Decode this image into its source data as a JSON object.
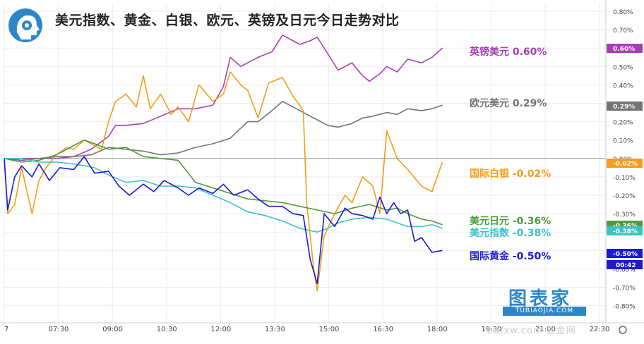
{
  "title": "美元指数、黄金、白银、欧元、英镑及日元今日走势对比",
  "watermark": {
    "main": "图表家",
    "sub": "TUBIAOJIA.COM",
    "secondary": "eafxw.com  汇金网"
  },
  "colors": {
    "gbp": "#a43fb3",
    "eur": "#737373",
    "silver": "#f39c1a",
    "jpy": "#4f9a3c",
    "dxy": "#3cc3c6",
    "gold": "#1a1ad1",
    "grid": "#ebebeb",
    "zero": "#9a9a9a",
    "countdown": "#1a1ad1"
  },
  "chart_data": {
    "type": "line",
    "title": "美元指数、黄金、白银、欧元、英镑及日元今日走势对比",
    "xlabel": "",
    "ylabel": "",
    "ylim": [
      -0.85,
      0.85
    ],
    "y_ticks": [
      "0.80%",
      "0.70%",
      "0.60%",
      "0.50%",
      "0.40%",
      "0.30%",
      "0.20%",
      "0.10%",
      "0.00%",
      "-0.10%",
      "-0.20%",
      "-0.30%",
      "-0.40%",
      "-0.50%",
      "-0.60%",
      "-0.70%",
      "-0.80%"
    ],
    "x_ticks": [
      "7",
      "07:30",
      "09:00",
      "10:30",
      "12:00",
      "13:30",
      "15:00",
      "16:30",
      "18:00",
      "19:30",
      "21:00",
      "22:30"
    ],
    "xlim_hours": [
      6.0,
      23.3
    ],
    "countdown": "00:42",
    "series": [
      {
        "key": "gbp",
        "name": "英镑美元",
        "final_label": "0.60%",
        "final": 0.6,
        "x": [
          6.0,
          6.5,
          7.0,
          7.5,
          8.0,
          8.5,
          9.0,
          9.2,
          9.5,
          10.0,
          10.5,
          11.0,
          11.5,
          12.0,
          12.3,
          12.5,
          12.8,
          13.0,
          13.3,
          13.7,
          14.0,
          14.5,
          14.8,
          15.0,
          15.3,
          15.6,
          16.0,
          16.3,
          16.5,
          16.8,
          17.0,
          17.3,
          17.6,
          18.0,
          18.3,
          18.6
        ],
        "y": [
          0.0,
          -0.01,
          0.0,
          0.0,
          0.01,
          0.05,
          0.12,
          0.18,
          0.18,
          0.19,
          0.23,
          0.27,
          0.27,
          0.29,
          0.39,
          0.55,
          0.5,
          0.52,
          0.55,
          0.58,
          0.67,
          0.62,
          0.64,
          0.66,
          0.57,
          0.48,
          0.52,
          0.45,
          0.42,
          0.46,
          0.5,
          0.47,
          0.54,
          0.52,
          0.55,
          0.6
        ]
      },
      {
        "key": "eur",
        "name": "欧元美元",
        "final_label": "0.29%",
        "final": 0.29,
        "x": [
          6.0,
          6.5,
          7.0,
          7.5,
          8.0,
          8.5,
          9.0,
          9.5,
          10.0,
          10.5,
          11.0,
          11.5,
          12.0,
          12.5,
          13.0,
          13.3,
          13.7,
          14.0,
          14.3,
          14.6,
          15.0,
          15.3,
          15.6,
          16.0,
          16.3,
          16.6,
          17.0,
          17.3,
          17.6,
          18.0,
          18.3,
          18.6
        ],
        "y": [
          0.0,
          0.0,
          0.0,
          0.01,
          0.01,
          0.02,
          0.06,
          0.05,
          0.04,
          0.02,
          0.03,
          0.06,
          0.08,
          0.11,
          0.2,
          0.2,
          0.26,
          0.31,
          0.28,
          0.25,
          0.21,
          0.18,
          0.17,
          0.19,
          0.22,
          0.23,
          0.25,
          0.24,
          0.27,
          0.26,
          0.27,
          0.29
        ]
      },
      {
        "key": "silver",
        "name": "国际白银",
        "final_label": "-0.02%",
        "final": -0.02,
        "x": [
          6.0,
          6.1,
          6.3,
          6.5,
          6.8,
          7.0,
          7.2,
          7.5,
          7.8,
          8.0,
          8.3,
          8.5,
          8.8,
          9.0,
          9.2,
          9.5,
          9.8,
          10.0,
          10.2,
          10.5,
          10.8,
          11.0,
          11.3,
          11.6,
          12.0,
          12.3,
          12.5,
          12.8,
          13.0,
          13.3,
          13.6,
          14.0,
          14.3,
          14.6,
          14.7,
          14.9,
          15.0,
          15.2,
          15.5,
          15.8,
          16.0,
          16.3,
          16.6,
          16.8,
          17.0,
          17.3,
          17.6,
          18.0,
          18.3,
          18.6
        ],
        "y": [
          0.0,
          -0.3,
          -0.25,
          -0.05,
          -0.3,
          -0.12,
          -0.05,
          0.02,
          0.06,
          0.05,
          0.1,
          0.08,
          0.05,
          0.2,
          0.31,
          0.35,
          0.28,
          0.45,
          0.27,
          0.35,
          0.24,
          0.28,
          0.2,
          0.4,
          0.31,
          0.35,
          0.47,
          0.4,
          0.37,
          0.22,
          0.41,
          0.44,
          0.34,
          0.26,
          -0.25,
          -0.6,
          -0.72,
          -0.42,
          -0.3,
          -0.2,
          -0.24,
          -0.1,
          -0.15,
          -0.3,
          0.15,
          0.0,
          -0.06,
          -0.15,
          -0.18,
          -0.02
        ]
      },
      {
        "key": "jpy",
        "name": "美元日元",
        "final_label": "-0.36%",
        "final": -0.36,
        "x": [
          6.0,
          6.5,
          7.0,
          7.5,
          8.0,
          8.3,
          8.6,
          9.0,
          9.5,
          10.0,
          10.5,
          11.0,
          11.5,
          12.0,
          12.5,
          13.0,
          13.5,
          14.0,
          14.5,
          15.0,
          15.5,
          16.0,
          16.5,
          17.0,
          17.3,
          17.6,
          18.0,
          18.3,
          18.6
        ],
        "y": [
          0.0,
          -0.02,
          -0.01,
          0.02,
          0.07,
          0.1,
          0.08,
          0.05,
          0.06,
          0.01,
          0.0,
          -0.01,
          -0.13,
          -0.16,
          -0.19,
          -0.22,
          -0.23,
          -0.24,
          -0.26,
          -0.28,
          -0.3,
          -0.27,
          -0.25,
          -0.28,
          -0.27,
          -0.3,
          -0.33,
          -0.34,
          -0.36
        ]
      },
      {
        "key": "dxy",
        "name": "美元指数",
        "final_label": "-0.38%",
        "final": -0.38,
        "x": [
          6.0,
          6.5,
          7.0,
          7.5,
          8.0,
          8.3,
          8.6,
          9.0,
          9.5,
          10.0,
          10.5,
          11.0,
          11.5,
          12.0,
          12.5,
          13.0,
          13.5,
          14.0,
          14.5,
          15.0,
          15.3,
          15.6,
          16.0,
          16.5,
          17.0,
          17.3,
          17.6,
          18.0,
          18.3,
          18.6
        ],
        "y": [
          0.0,
          0.0,
          -0.02,
          -0.02,
          -0.03,
          -0.04,
          -0.05,
          -0.09,
          -0.13,
          -0.12,
          -0.15,
          -0.15,
          -0.16,
          -0.2,
          -0.24,
          -0.29,
          -0.31,
          -0.34,
          -0.38,
          -0.4,
          -0.38,
          -0.35,
          -0.33,
          -0.32,
          -0.33,
          -0.35,
          -0.37,
          -0.37,
          -0.36,
          -0.38
        ]
      },
      {
        "key": "gold",
        "name": "国际黄金",
        "final_label": "-0.50%",
        "final": -0.5,
        "x": [
          6.0,
          6.1,
          6.3,
          6.5,
          6.8,
          7.0,
          7.3,
          7.6,
          8.0,
          8.3,
          8.6,
          9.0,
          9.3,
          9.6,
          10.0,
          10.3,
          10.6,
          11.0,
          11.3,
          11.6,
          12.0,
          12.3,
          12.6,
          13.0,
          13.3,
          13.6,
          14.0,
          14.3,
          14.6,
          14.8,
          15.0,
          15.2,
          15.5,
          15.8,
          16.0,
          16.3,
          16.6,
          16.8,
          17.0,
          17.2,
          17.4,
          17.6,
          17.8,
          18.0,
          18.3,
          18.6
        ],
        "y": [
          0.0,
          -0.28,
          -0.1,
          -0.04,
          -0.1,
          -0.03,
          -0.12,
          -0.05,
          -0.06,
          0.01,
          -0.08,
          -0.07,
          -0.15,
          -0.2,
          -0.14,
          -0.18,
          -0.12,
          -0.16,
          -0.2,
          -0.16,
          -0.19,
          -0.14,
          -0.2,
          -0.17,
          -0.22,
          -0.26,
          -0.26,
          -0.3,
          -0.31,
          -0.55,
          -0.68,
          -0.3,
          -0.37,
          -0.27,
          -0.3,
          -0.31,
          -0.33,
          -0.21,
          -0.3,
          -0.24,
          -0.3,
          -0.28,
          -0.45,
          -0.43,
          -0.51,
          -0.5
        ]
      }
    ]
  }
}
